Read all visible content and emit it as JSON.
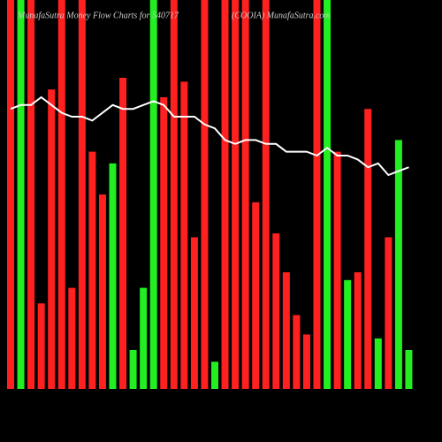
{
  "chart_data": {
    "type": "bar",
    "title": "MunafaSutra Money Flow Charts for 540717",
    "subtitle": "(COOIA) MunafaSutra.com",
    "ylim": [
      0,
      100
    ],
    "values": [
      100,
      100,
      100,
      22,
      77,
      100,
      26,
      100,
      61,
      50,
      58,
      80,
      10,
      26,
      100,
      75,
      100,
      79,
      39,
      100,
      7,
      100,
      100,
      100,
      48,
      100,
      40,
      30,
      19,
      14,
      100,
      100,
      61,
      28,
      30,
      72,
      13,
      39,
      64,
      10
    ],
    "colors": [
      "#ff2020",
      "#22ee22",
      "#ff2020",
      "#ff2020",
      "#ff2020",
      "#ff2020",
      "#ff2020",
      "#ff2020",
      "#ff2020",
      "#ff2020",
      "#22ee22",
      "#ff2020",
      "#22ee22",
      "#22ee22",
      "#22ee22",
      "#ff2020",
      "#ff2020",
      "#ff2020",
      "#ff2020",
      "#ff2020",
      "#22ee22",
      "#ff2020",
      "#ff2020",
      "#ff2020",
      "#ff2020",
      "#ff2020",
      "#ff2020",
      "#ff2020",
      "#ff2020",
      "#ff2020",
      "#ff2020",
      "#22ee22",
      "#ff2020",
      "#22ee22",
      "#ff2020",
      "#ff2020",
      "#22ee22",
      "#ff2020",
      "#22ee22",
      "#22ee22"
    ],
    "line": {
      "color": "#ffffff",
      "values": [
        72,
        73,
        73,
        75,
        73,
        71,
        70,
        70,
        69,
        71,
        73,
        72,
        72,
        73,
        74,
        73,
        70,
        70,
        70,
        68,
        67,
        64,
        63,
        64,
        64,
        63,
        63,
        61,
        61,
        61,
        60,
        62,
        60,
        60,
        59,
        57,
        58,
        55,
        56,
        57
      ]
    }
  }
}
